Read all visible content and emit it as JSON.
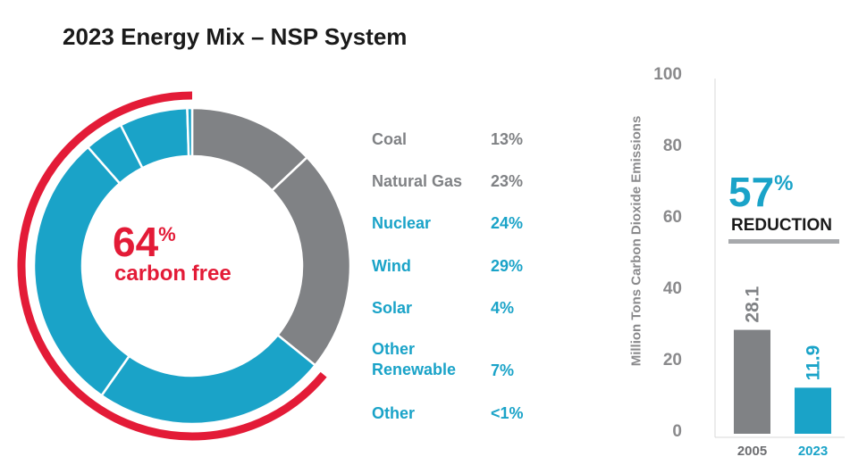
{
  "title": "2023 Energy Mix – NSP System",
  "colors": {
    "fossil": "#808285",
    "carbon_free": "#1aa3c8",
    "accent_red": "#e31b37",
    "text_dark": "#1a1a1a",
    "axis_gray": "#8a8a8c"
  },
  "donut": {
    "center_value": "64",
    "center_unit": "%",
    "center_label": "carbon free",
    "carbon_free_percent": 64
  },
  "chart_data": [
    {
      "type": "pie",
      "title": "2023 Energy Mix – NSP System",
      "slices": [
        {
          "label": "Coal",
          "value": 13,
          "display": "13%",
          "group": "fossil"
        },
        {
          "label": "Natural Gas",
          "value": 23,
          "display": "23%",
          "group": "fossil"
        },
        {
          "label": "Nuclear",
          "value": 24,
          "display": "24%",
          "group": "carbon_free"
        },
        {
          "label": "Wind",
          "value": 29,
          "display": "29%",
          "group": "carbon_free"
        },
        {
          "label": "Solar",
          "value": 4,
          "display": "4%",
          "group": "carbon_free"
        },
        {
          "label": "Other\nRenewable",
          "value": 7,
          "display": "7%",
          "group": "carbon_free"
        },
        {
          "label": "Other",
          "value": 0.5,
          "display": "<1%",
          "group": "carbon_free"
        }
      ]
    },
    {
      "type": "bar",
      "categories": [
        "2005",
        "2023"
      ],
      "values": [
        28.1,
        11.9
      ],
      "value_labels": [
        "28.1",
        "11.9"
      ],
      "ylabel": "Million Tons Carbon Dioxide Emissions",
      "ylim": [
        0,
        100
      ],
      "yticks": [
        0,
        20,
        40,
        60,
        80,
        100
      ],
      "colors": [
        "#808285",
        "#1aa3c8"
      ]
    }
  ],
  "reduction": {
    "value": "57",
    "unit": "%",
    "label": "REDUCTION"
  }
}
